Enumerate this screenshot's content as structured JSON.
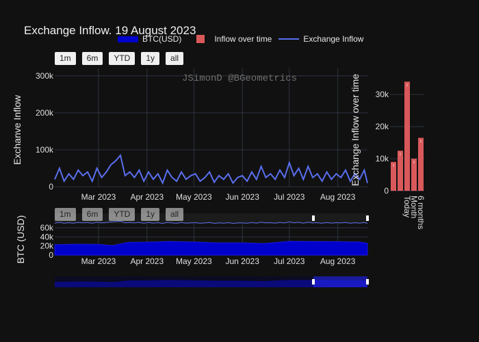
{
  "title": "Exchange Inflow. 19 August 2023",
  "watermark": "JSimonD @BGeometrics",
  "range_buttons": [
    "1m",
    "6m",
    "YTD",
    "1y",
    "all"
  ],
  "legend": {
    "btc": "BTC(USD)",
    "bar": "Inflow over time",
    "line": "Exchange Inflow"
  },
  "colors": {
    "line": "#5a6ff0",
    "btc_fill": "#0000cc",
    "bar": "#d9595b",
    "grid": "#2c3340"
  },
  "chart_data": [
    {
      "type": "line",
      "name": "Exchange Inflow",
      "ylabel": "Exchanve Inflow",
      "xlim": [
        "2023-02-01",
        "2023-08-20"
      ],
      "ylim": [
        0,
        320000
      ],
      "ytick_labels": [
        "0",
        "100k",
        "200k",
        "300k"
      ],
      "yticks": [
        0,
        100000,
        200000,
        300000
      ],
      "xtick_labels": [
        "Mar 2023",
        "Apr 2023",
        "May 2023",
        "Jun 2023",
        "Jul 2023",
        "Aug 2023"
      ],
      "xticks": [
        "2023-03-01",
        "2023-04-01",
        "2023-05-01",
        "2023-06-01",
        "2023-07-01",
        "2023-08-01"
      ],
      "grid": true,
      "x": [
        "2023-02-01",
        "2023-02-04",
        "2023-02-07",
        "2023-02-10",
        "2023-02-13",
        "2023-02-16",
        "2023-02-19",
        "2023-02-22",
        "2023-02-25",
        "2023-02-28",
        "2023-03-03",
        "2023-03-06",
        "2023-03-09",
        "2023-03-12",
        "2023-03-15",
        "2023-03-18",
        "2023-03-21",
        "2023-03-24",
        "2023-03-27",
        "2023-03-30",
        "2023-04-02",
        "2023-04-05",
        "2023-04-08",
        "2023-04-11",
        "2023-04-14",
        "2023-04-17",
        "2023-04-20",
        "2023-04-23",
        "2023-04-26",
        "2023-04-29",
        "2023-05-02",
        "2023-05-05",
        "2023-05-08",
        "2023-05-11",
        "2023-05-14",
        "2023-05-17",
        "2023-05-20",
        "2023-05-23",
        "2023-05-26",
        "2023-05-29",
        "2023-06-01",
        "2023-06-04",
        "2023-06-07",
        "2023-06-10",
        "2023-06-13",
        "2023-06-16",
        "2023-06-19",
        "2023-06-22",
        "2023-06-25",
        "2023-06-28",
        "2023-07-01",
        "2023-07-04",
        "2023-07-07",
        "2023-07-10",
        "2023-07-13",
        "2023-07-16",
        "2023-07-19",
        "2023-07-22",
        "2023-07-25",
        "2023-07-28",
        "2023-07-31",
        "2023-08-03",
        "2023-08-06",
        "2023-08-09",
        "2023-08-12",
        "2023-08-15",
        "2023-08-18",
        "2023-08-20"
      ],
      "y": [
        20000,
        50000,
        15000,
        35000,
        20000,
        45000,
        30000,
        40000,
        15000,
        50000,
        25000,
        40000,
        60000,
        70000,
        85000,
        30000,
        40000,
        25000,
        45000,
        15000,
        40000,
        20000,
        35000,
        10000,
        45000,
        25000,
        15000,
        40000,
        20000,
        30000,
        35000,
        15000,
        25000,
        40000,
        12000,
        30000,
        20000,
        35000,
        10000,
        25000,
        30000,
        15000,
        40000,
        20000,
        55000,
        25000,
        35000,
        20000,
        45000,
        25000,
        65000,
        30000,
        50000,
        20000,
        55000,
        25000,
        35000,
        15000,
        40000,
        20000,
        35000,
        25000,
        45000,
        15000,
        35000,
        20000,
        45000,
        10000
      ]
    },
    {
      "type": "bar",
      "name": "Inflow over time",
      "ylabel": "Exchange Inflow over time",
      "categories": [
        "Today",
        "Month",
        "6 months"
      ],
      "bars": [
        9000,
        12500,
        34000,
        10000,
        16500
      ],
      "bar_labels": [
        "",
        "",
        "Today",
        "Month",
        "6 months"
      ],
      "ylim": [
        0,
        36000
      ],
      "yticks": [
        0,
        10000,
        20000,
        30000
      ],
      "ytick_labels": [
        "0",
        "10k",
        "20k",
        "30k"
      ]
    },
    {
      "type": "area",
      "name": "BTC(USD)",
      "ylabel": "BTC (USD)",
      "ylim": [
        0,
        72000
      ],
      "yticks": [
        0,
        20000,
        40000,
        60000
      ],
      "ytick_labels": [
        "0",
        "20k",
        "40k",
        "60k"
      ],
      "xtick_labels": [
        "Mar 2023",
        "Apr 2023",
        "May 2023",
        "Jun 2023",
        "Jul 2023",
        "Aug 2023"
      ],
      "x": [
        "2023-02-01",
        "2023-02-15",
        "2023-03-01",
        "2023-03-10",
        "2023-03-20",
        "2023-04-01",
        "2023-04-15",
        "2023-05-01",
        "2023-05-15",
        "2023-06-01",
        "2023-06-15",
        "2023-07-01",
        "2023-07-15",
        "2023-08-01",
        "2023-08-15",
        "2023-08-20"
      ],
      "y": [
        23000,
        24000,
        23500,
        21000,
        28000,
        28500,
        30000,
        29000,
        27000,
        27000,
        25500,
        30500,
        30000,
        29500,
        29000,
        26000
      ]
    }
  ]
}
